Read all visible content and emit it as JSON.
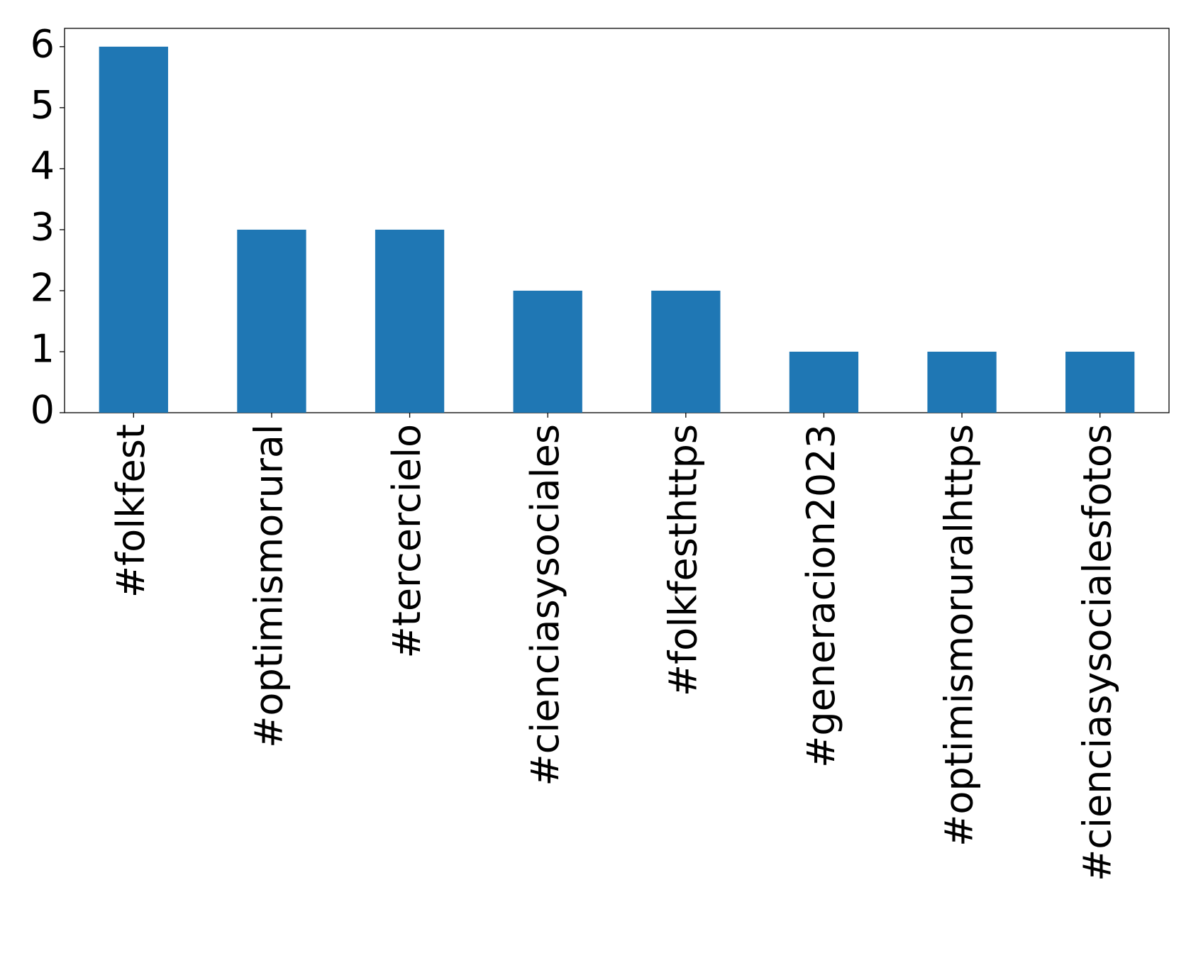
{
  "chart_data": {
    "type": "bar",
    "categories": [
      "#folkfest",
      "#optimismorural",
      "#tercercielo",
      "#cienciasysociales",
      "#folkfesthttps",
      "#generacion2023",
      "#optimismoruralhttps",
      "#cienciasysocialesfotos"
    ],
    "values": [
      6,
      3,
      3,
      2,
      2,
      1,
      1,
      1
    ],
    "color": "#1f77b4",
    "ylim": [
      0,
      6.3
    ],
    "yticks": [
      0,
      1,
      2,
      3,
      4,
      5,
      6
    ],
    "grid": false
  }
}
